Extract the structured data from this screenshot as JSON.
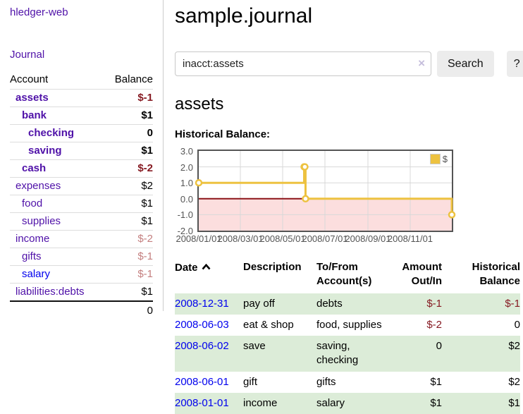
{
  "sidebar": {
    "brand": "hledger-web",
    "nav": [
      {
        "label": "Journal"
      }
    ],
    "accounts": {
      "headers": {
        "account": "Account",
        "balance": "Balance"
      },
      "rows": [
        {
          "name": "assets",
          "balance": "$-1"
        },
        {
          "name": "bank",
          "balance": "$1"
        },
        {
          "name": "checking",
          "balance": "0"
        },
        {
          "name": "saving",
          "balance": "$1"
        },
        {
          "name": "cash",
          "balance": "$-2"
        },
        {
          "name": "expenses",
          "balance": "$2"
        },
        {
          "name": "food",
          "balance": "$1"
        },
        {
          "name": "supplies",
          "balance": "$1"
        },
        {
          "name": "income",
          "balance": "$-2"
        },
        {
          "name": "gifts",
          "balance": "$-1"
        },
        {
          "name": "salary",
          "balance": "$-1"
        },
        {
          "name": "liabilities:debts",
          "balance": "$1"
        }
      ],
      "total": "0"
    }
  },
  "main": {
    "title": "sample.journal",
    "search": {
      "value": "inacct:assets",
      "clear_icon": "×",
      "button": "Search",
      "help_button": "?"
    },
    "account_heading": "assets",
    "chart_heading": "Historical Balance:"
  },
  "chart_data": {
    "type": "line",
    "step": true,
    "title": "Historical Balance:",
    "series": [
      {
        "name": "$",
        "color": "#edc240",
        "points": [
          [
            "2008-01-01",
            1
          ],
          [
            "2008-06-01",
            2
          ],
          [
            "2008-06-02",
            2
          ],
          [
            "2008-06-03",
            0
          ],
          [
            "2008-12-31",
            -1
          ]
        ]
      }
    ],
    "xlim": [
      "2008-01-01",
      "2008-12-31"
    ],
    "ylim": [
      -2,
      3
    ],
    "yticks": [
      3,
      2,
      1,
      0,
      -1,
      -2
    ],
    "xtick_labels": [
      "2008/01/01",
      "2008/03/01",
      "2008/05/01",
      "2008/07/01",
      "2008/09/01",
      "2008/11/01"
    ],
    "legend_position": "top-right",
    "grid": true,
    "negative_region_fill": "#fcdede",
    "zero_line_color": "#8c1318",
    "grid_color": "#d8d8d8",
    "border_color": "#545454"
  },
  "register": {
    "headers": {
      "date": "Date",
      "description": "Description",
      "accounts": "To/From Account(s)",
      "amount": "Amount Out/In",
      "balance": "Historical Balance"
    },
    "rows": [
      {
        "date": "2008-12-31",
        "description": "pay off",
        "accounts": "debts",
        "amount": "$-1",
        "balance": "$-1"
      },
      {
        "date": "2008-06-03",
        "description": "eat & shop",
        "accounts": "food, supplies",
        "amount": "$-2",
        "balance": "0"
      },
      {
        "date": "2008-06-02",
        "description": "save",
        "accounts": "saving, checking",
        "amount": "0",
        "balance": "$2"
      },
      {
        "date": "2008-06-01",
        "description": "gift",
        "accounts": "gifts",
        "amount": "$1",
        "balance": "$2"
      },
      {
        "date": "2008-01-01",
        "description": "income",
        "accounts": "salary",
        "amount": "$1",
        "balance": "$1"
      }
    ]
  },
  "colors": {
    "link_purple": "#4f11a8",
    "link_blue": "#0000ee",
    "negative": "#861a22",
    "negative_dim": "#c47f7f",
    "row_stripe_green": "#dcecd8",
    "button_bg": "#ececec",
    "chart_line": "#edc240",
    "chart_negative_fill": "#fcdede",
    "chart_zero_line": "#8c1318"
  }
}
